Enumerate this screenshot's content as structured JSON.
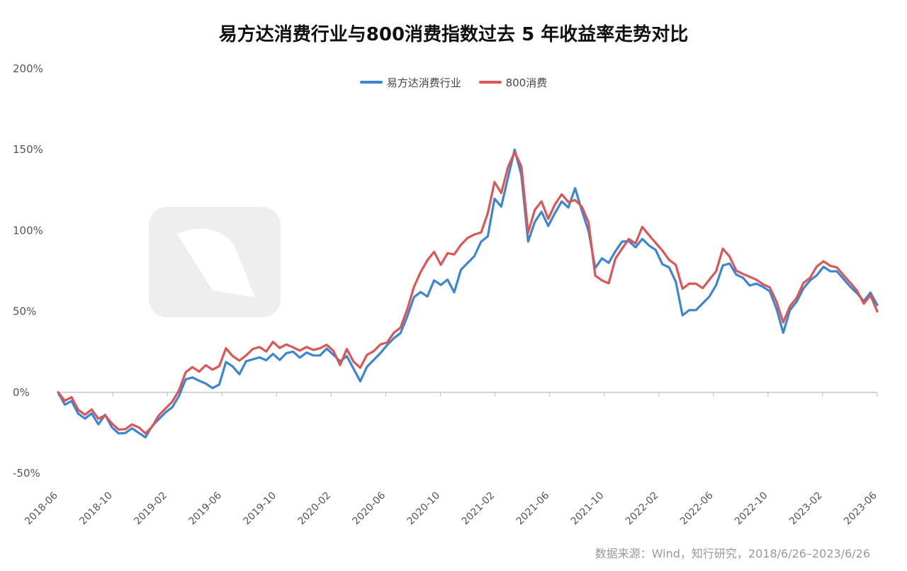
{
  "title": "易方达消费行业与800消费指数过去 5 年收益率走势对比",
  "source": "数据来源：Wind，知行研究，2018/6/26–2023/6/26",
  "colors": {
    "blue": "#3a86d4",
    "red": "#dd5555",
    "axis": "#c8c8c8",
    "text": "#555555",
    "watermark": "#eeeeee"
  },
  "chart_data": {
    "type": "line",
    "y_ticks": [
      "200%",
      "150%",
      "100%",
      "50%",
      "0%",
      "-50%"
    ],
    "y_tick_values": [
      200,
      150,
      100,
      50,
      0,
      -50
    ],
    "ylim": [
      -50,
      200
    ],
    "x_ticks": [
      "2018-06",
      "2018-10",
      "2019-02",
      "2019-06",
      "2019-10",
      "2020-02",
      "2020-06",
      "2020-10",
      "2021-02",
      "2021-06",
      "2021-10",
      "2022-02",
      "2022-06",
      "2022-10",
      "2023-02",
      "2023-06"
    ],
    "grid": false,
    "legend_position": "top-center",
    "series": [
      {
        "name": "易方达消费行业",
        "color": "#3a86d4",
        "values": [
          0,
          -8,
          -5,
          -12,
          -17,
          -13,
          -19,
          -15,
          -22,
          -25,
          -24,
          -23,
          -25,
          -27,
          -22,
          -17,
          -12,
          -8,
          -3,
          8,
          10,
          6,
          5,
          3,
          6,
          18,
          16,
          12,
          18,
          20,
          22,
          21,
          23,
          20,
          25,
          24,
          21,
          25,
          24,
          22,
          27,
          24,
          18,
          22,
          15,
          8,
          15,
          20,
          25,
          28,
          33,
          37,
          48,
          58,
          62,
          60,
          68,
          66,
          70,
          63,
          75,
          80,
          85,
          92,
          96,
          120,
          116,
          132,
          150,
          135,
          92,
          105,
          112,
          104,
          110,
          118,
          115,
          125,
          112,
          100,
          78,
          82,
          80,
          88,
          92,
          93,
          90,
          96,
          90,
          88,
          80,
          76,
          68,
          48,
          52,
          50,
          55,
          60,
          65,
          78,
          80,
          74,
          70,
          66,
          68,
          64,
          62,
          52,
          38,
          50,
          56,
          65,
          68,
          72,
          78,
          76,
          74,
          70,
          66,
          60,
          56,
          62,
          54
        ]
      },
      {
        "name": "800消费",
        "color": "#dd5555",
        "values": [
          0,
          -6,
          -3,
          -10,
          -15,
          -11,
          -16,
          -13,
          -20,
          -23,
          -22,
          -21,
          -22,
          -25,
          -20,
          -15,
          -10,
          -5,
          0,
          12,
          16,
          14,
          16,
          14,
          17,
          26,
          22,
          20,
          24,
          26,
          28,
          26,
          30,
          27,
          30,
          29,
          25,
          28,
          27,
          26,
          29,
          26,
          18,
          26,
          19,
          16,
          22,
          25,
          30,
          32,
          36,
          40,
          52,
          64,
          74,
          82,
          88,
          78,
          86,
          86,
          90,
          95,
          98,
          100,
          110,
          130,
          124,
          138,
          148,
          140,
          100,
          112,
          118,
          108,
          115,
          122,
          118,
          120,
          114,
          105,
          73,
          68,
          67,
          83,
          90,
          94,
          92,
          103,
          96,
          92,
          88,
          83,
          78,
          64,
          68,
          66,
          64,
          70,
          76,
          88,
          84,
          76,
          72,
          71,
          70,
          68,
          64,
          56,
          44,
          52,
          58,
          68,
          72,
          77,
          81,
          79,
          76,
          72,
          68,
          64,
          54,
          60,
          50
        ]
      }
    ]
  }
}
